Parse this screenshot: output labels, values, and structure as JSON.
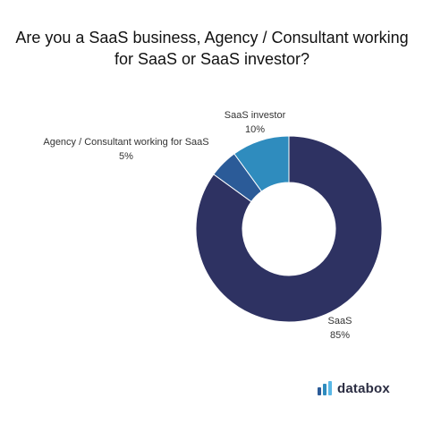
{
  "chart_data": {
    "type": "pie",
    "title_lines": [
      "Are you a SaaS business, Agency / Consultant working",
      "for SaaS or SaaS investor?"
    ],
    "slices": [
      {
        "label": "SaaS",
        "value": 85,
        "display": "85%",
        "color": "#2e3262"
      },
      {
        "label": "Agency / Consultant working for SaaS",
        "value": 5,
        "display": "5%",
        "color": "#2b5b98"
      },
      {
        "label": "SaaS investor",
        "value": 10,
        "display": "10%",
        "color": "#2f8cbe"
      }
    ],
    "donut": true,
    "legend": "none"
  },
  "brand": {
    "name": "databox",
    "colors": [
      "#2b5b98",
      "#2f8cbe",
      "#5ab8e6"
    ]
  }
}
